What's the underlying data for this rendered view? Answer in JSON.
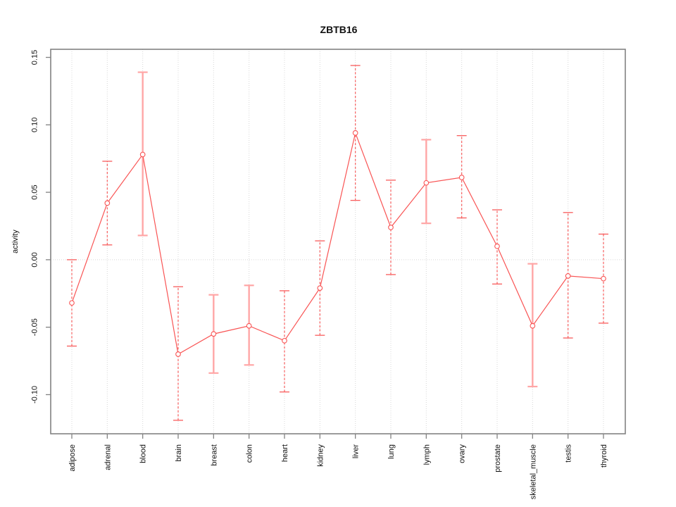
{
  "chart_data": {
    "type": "line",
    "title": "ZBTB16",
    "xlabel": "",
    "ylabel": "activity",
    "categories": [
      "adipose",
      "adrenal",
      "blood",
      "brain",
      "breast",
      "colon",
      "heart",
      "kidney",
      "liver",
      "lung",
      "lymph",
      "ovary",
      "prostate",
      "skeletal_muscle",
      "testis",
      "thyroid"
    ],
    "series": [
      {
        "name": "activity",
        "values": [
          -0.032,
          0.042,
          0.078,
          -0.07,
          -0.055,
          -0.049,
          -0.06,
          -0.021,
          0.094,
          0.024,
          0.057,
          0.061,
          0.01,
          -0.049,
          -0.012,
          -0.014
        ],
        "lower": [
          -0.064,
          0.011,
          0.018,
          -0.119,
          -0.084,
          -0.078,
          -0.098,
          -0.056,
          0.044,
          -0.011,
          0.027,
          0.031,
          -0.018,
          -0.094,
          -0.058,
          -0.047
        ],
        "upper": [
          0.0,
          0.073,
          0.139,
          -0.02,
          -0.026,
          -0.019,
          -0.023,
          0.014,
          0.144,
          0.059,
          0.089,
          0.092,
          0.037,
          -0.003,
          0.035,
          0.019
        ]
      }
    ],
    "error_bar_styles": [
      "dashed",
      "dashed",
      "solid",
      "dashed",
      "solid",
      "solid",
      "dashed",
      "dashed",
      "dashed",
      "dashed",
      "solid",
      "dashed",
      "dashed",
      "solid",
      "dashed",
      "dashed"
    ],
    "yticks": [
      0.15,
      0.1,
      0.05,
      0.0,
      -0.05,
      -0.1
    ],
    "ylim": [
      -0.129,
      0.156
    ],
    "grid": {
      "vertical_gridlines": true,
      "zero_line": true,
      "legend": "none",
      "marker": "open-circle"
    },
    "colors": {
      "line": "#f95454",
      "dashed_bar": "#f85c5c",
      "solid_bar": "#ffa6a6",
      "grid": "#d8d8d8",
      "frame": "#828282",
      "text": "#111111",
      "background": "#ffffff"
    }
  }
}
